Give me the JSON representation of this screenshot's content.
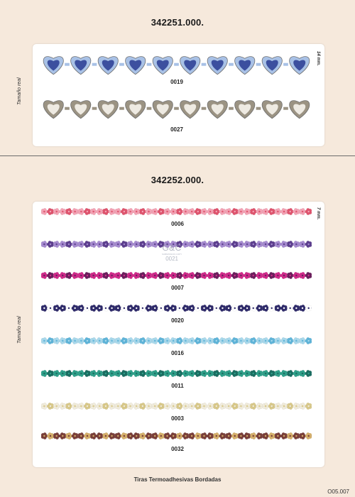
{
  "sections": [
    {
      "code": "342251.000.",
      "scale_label": "Tamaño real",
      "size_label": "14 mm.",
      "trims": [
        {
          "ref": "0019",
          "style": "hearts",
          "base": "#a8c1e6",
          "accent": "#3c4f9f"
        },
        {
          "ref": "0027",
          "style": "hearts",
          "base": "#9b9383",
          "accent": "#eeeae2"
        }
      ]
    },
    {
      "code": "342252.000.",
      "scale_label": "Tamaño real",
      "size_label": "7 mm.",
      "trims": [
        {
          "ref": "0006",
          "style": "flowers",
          "base": "#f4a3b5",
          "accent": "#e0546e"
        },
        {
          "ref": "0021",
          "style": "flowers",
          "base": "#a68bd0",
          "accent": "#5d3f8f"
        },
        {
          "ref": "0007",
          "style": "flowers",
          "base": "#d02a8a",
          "accent": "#6b1f5d"
        },
        {
          "ref": "0020",
          "style": "flowers",
          "base": "#2f2b6b",
          "accent": "#ffffff"
        },
        {
          "ref": "0016",
          "style": "flowers",
          "base": "#a9d9ec",
          "accent": "#5fb5da"
        },
        {
          "ref": "0011",
          "style": "flowers",
          "base": "#2fa08a",
          "accent": "#1b6e62"
        },
        {
          "ref": "0003",
          "style": "flowers",
          "base": "#f1ecdc",
          "accent": "#d9c98a"
        },
        {
          "ref": "0032",
          "style": "flowers",
          "base": "#7a3f3a",
          "accent": "#d6b06b"
        }
      ]
    }
  ],
  "watermark": {
    "logo": "G&C",
    "sub": "SUBMISSION COPY",
    "code": "0021"
  },
  "footer": {
    "title": "Tiras Termoadhesivas Bordadas",
    "page_code": "O05.007"
  }
}
